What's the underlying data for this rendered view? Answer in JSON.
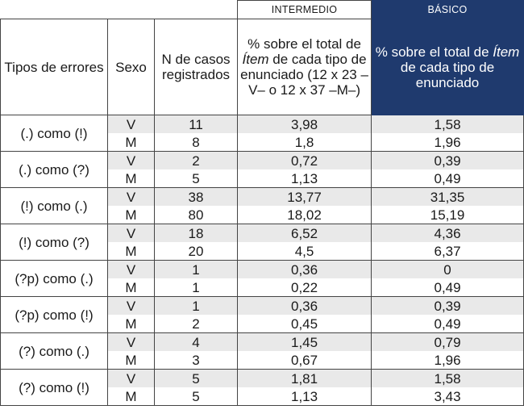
{
  "group_headers": {
    "intermedio": "INTERMEDIO",
    "basico": "BÁSICO"
  },
  "column_headers": {
    "tipos": "Tipos de errores",
    "sexo": "Sexo",
    "n_casos": "N de casos registrados",
    "pct_intermedio_a": "% sobre el total de ",
    "pct_intermedio_item": "Ítem",
    "pct_intermedio_b": " de cada tipo de enunciado (12 x 23 –V– o 12 x 37 –M–)",
    "pct_basico_a": "% sobre el total de ",
    "pct_basico_item": "Ítem",
    "pct_basico_b": " de cada tipo de enunciado"
  },
  "rows": [
    {
      "type": "(.) como (!)",
      "v": {
        "sexo": "V",
        "n": "11",
        "pi": "3,98",
        "pb": "1,58"
      },
      "m": {
        "sexo": "M",
        "n": "8",
        "pi": "1,8",
        "pb": "1,96"
      }
    },
    {
      "type": "(.) como (?)",
      "v": {
        "sexo": "V",
        "n": "2",
        "pi": "0,72",
        "pb": "0,39"
      },
      "m": {
        "sexo": "M",
        "n": "5",
        "pi": "1,13",
        "pb": "0,49"
      }
    },
    {
      "type": "(!) como (.)",
      "v": {
        "sexo": "V",
        "n": "38",
        "pi": "13,77",
        "pb": "31,35"
      },
      "m": {
        "sexo": "M",
        "n": "80",
        "pi": "18,02",
        "pb": "15,19"
      }
    },
    {
      "type": "(!) como (?)",
      "v": {
        "sexo": "V",
        "n": "18",
        "pi": "6,52",
        "pb": "4,36"
      },
      "m": {
        "sexo": "M",
        "n": "20",
        "pi": "4,5",
        "pb": "6,37"
      }
    },
    {
      "type": "(?p) como (.)",
      "v": {
        "sexo": "V",
        "n": "1",
        "pi": "0,36",
        "pb": "0"
      },
      "m": {
        "sexo": "M",
        "n": "1",
        "pi": "0,22",
        "pb": "0,49"
      }
    },
    {
      "type": "(?p) como (!)",
      "v": {
        "sexo": "V",
        "n": "1",
        "pi": "0,36",
        "pb": "0,39"
      },
      "m": {
        "sexo": "M",
        "n": "2",
        "pi": "0,45",
        "pb": "0,49"
      }
    },
    {
      "type": "(?) como (.)",
      "v": {
        "sexo": "V",
        "n": "4",
        "pi": "1,45",
        "pb": "0,79"
      },
      "m": {
        "sexo": "M",
        "n": "3",
        "pi": "0,67",
        "pb": "1,96"
      }
    },
    {
      "type": "(?) como (!)",
      "v": {
        "sexo": "V",
        "n": "5",
        "pi": "1,81",
        "pb": "1,58"
      },
      "m": {
        "sexo": "M",
        "n": "5",
        "pi": "1,13",
        "pb": "3,43"
      }
    }
  ],
  "colors": {
    "basic_header_bg": "#1f3a6e",
    "shade": "#e9e9e9"
  }
}
